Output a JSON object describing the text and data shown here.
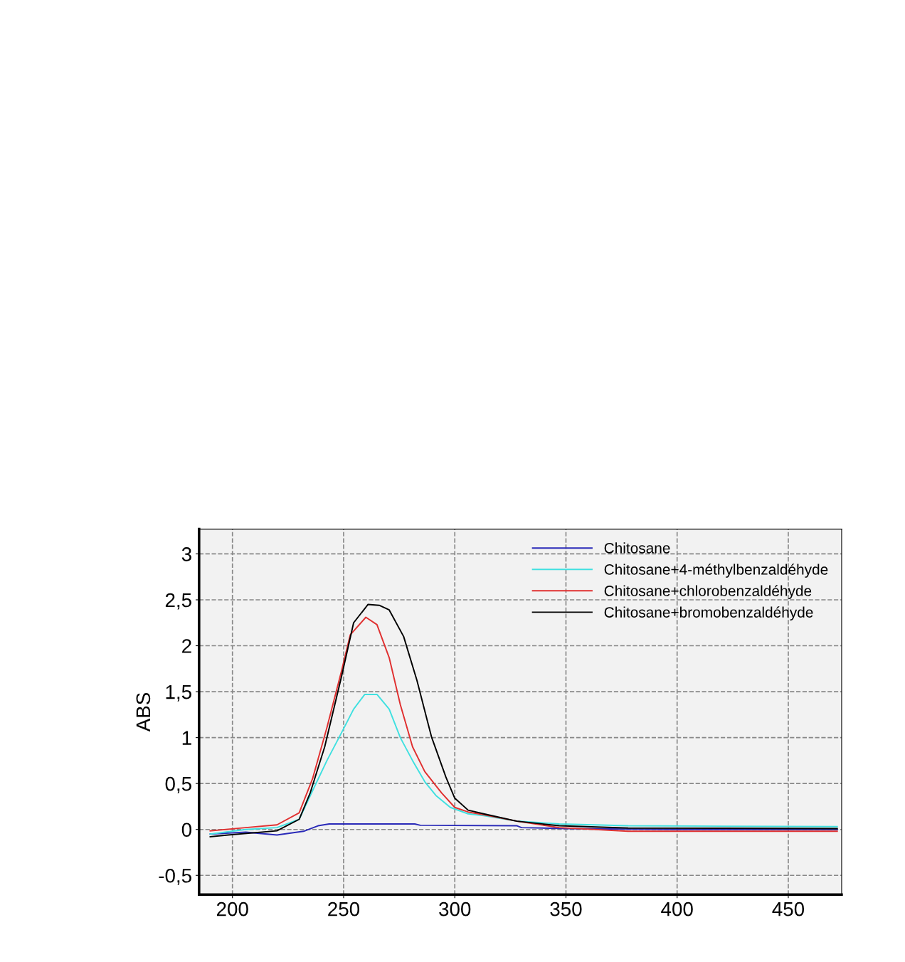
{
  "chart_data": {
    "type": "line",
    "ylabel": "ABS",
    "xlim": [
      185,
      474
    ],
    "ylim": [
      -0.71,
      3.27
    ],
    "xticks": [
      200,
      250,
      300,
      350,
      400,
      450
    ],
    "yticks": [
      {
        "value": -0.5,
        "label": "-0,5"
      },
      0,
      {
        "value": 0.5,
        "label": "0,5"
      },
      1,
      {
        "value": 1.5,
        "label": "1,5"
      },
      2,
      {
        "value": 2.5,
        "label": "2,5"
      },
      3
    ],
    "grid": true,
    "legend": "top right",
    "line_style": "solid",
    "marker": "none",
    "series": [
      {
        "name": "Chitosane",
        "color": "#2a2ab8",
        "x": [
          190,
          206,
          220,
          232,
          238.5,
          243.5,
          282,
          284.5,
          328,
          330,
          350,
          400,
          472
        ],
        "values": [
          -0.05,
          -0.03,
          -0.06,
          -0.02,
          0.04,
          0.06,
          0.06,
          0.045,
          0.04,
          0.02,
          0.01,
          0.0,
          0.0
        ]
      },
      {
        "name": "Chitosane+4-méthylbenzaldéhyde",
        "color": "#40e0e0",
        "x": [
          190,
          206,
          220,
          230,
          236,
          242.5,
          249,
          254.5,
          259.5,
          265,
          270.5,
          275.5,
          281,
          286.5,
          291.5,
          298,
          306,
          313,
          328,
          347,
          378,
          472
        ],
        "values": [
          -0.05,
          0.0,
          0.02,
          0.11,
          0.42,
          0.75,
          1.05,
          1.31,
          1.47,
          1.47,
          1.31,
          1.0,
          0.75,
          0.52,
          0.37,
          0.24,
          0.17,
          0.15,
          0.09,
          0.06,
          0.04,
          0.03
        ]
      },
      {
        "name": "Chitosane+chlorobenzaldéhyde",
        "color": "#e03030",
        "x": [
          190,
          206,
          220,
          230,
          236,
          242.5,
          249,
          253,
          260,
          265,
          270.5,
          275.5,
          281,
          286.5,
          294,
          300,
          306,
          313,
          328,
          347,
          378,
          472
        ],
        "values": [
          -0.015,
          0.02,
          0.05,
          0.18,
          0.55,
          1.11,
          1.72,
          2.12,
          2.31,
          2.23,
          1.87,
          1.36,
          0.9,
          0.63,
          0.4,
          0.24,
          0.19,
          0.16,
          0.09,
          0.02,
          -0.02,
          -0.02
        ]
      },
      {
        "name": "Chitosane+bromobenzaldéhyde",
        "color": "#000000",
        "x": [
          190,
          198,
          220,
          230,
          235,
          241.5,
          249,
          254.5,
          261,
          266,
          270.5,
          277,
          283,
          289.5,
          296,
          300,
          306,
          313,
          328,
          347,
          378,
          472
        ],
        "values": [
          -0.08,
          -0.06,
          -0.015,
          0.11,
          0.4,
          0.9,
          1.66,
          2.25,
          2.45,
          2.44,
          2.39,
          2.1,
          1.62,
          1.01,
          0.57,
          0.34,
          0.21,
          0.17,
          0.09,
          0.04,
          0.015,
          0.01
        ]
      }
    ]
  }
}
